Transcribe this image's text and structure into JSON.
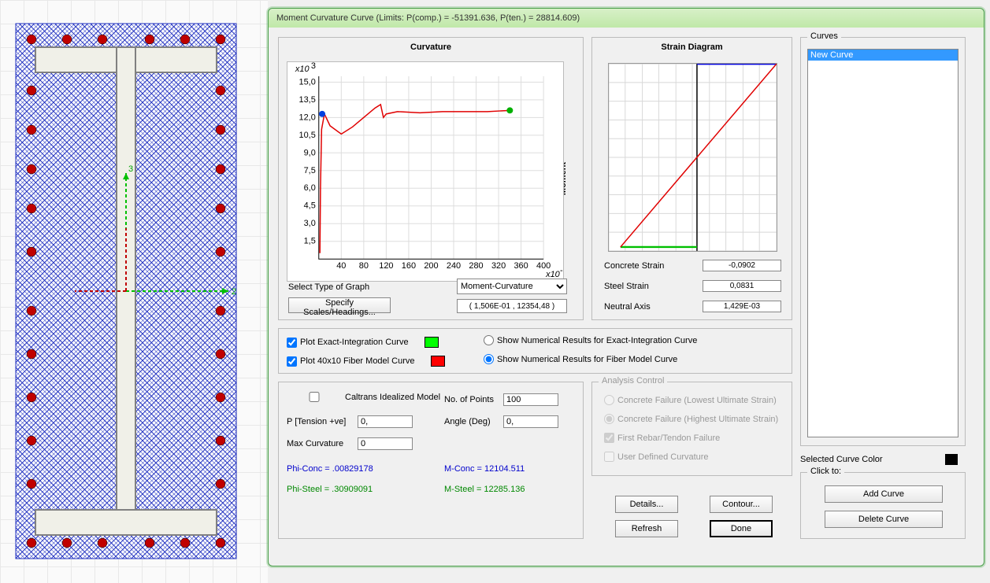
{
  "window": {
    "title": "Moment Curvature Curve (Limits:  P(comp.) = -51391.636, P(ten.) = 28814.609)"
  },
  "section": {
    "hatch_color": "#2030c0",
    "rebar_color": "#c00000",
    "section_outline": "#808080",
    "arrow_x_color": "#00c000",
    "arrow_y_color": "#c00000",
    "grid_bg": "#fafafa"
  },
  "curvature_chart": {
    "title": "Curvature",
    "y_axis_label": "Moment",
    "y_multiplier": "x10",
    "y_exp": "3",
    "x_multiplier": "x10",
    "x_exp": "-3",
    "ylim": [
      0,
      15.5
    ],
    "yticks": [
      1.5,
      3.0,
      4.5,
      6.0,
      7.5,
      9.0,
      10.5,
      12.0,
      13.5,
      15.0
    ],
    "xticks": [
      40,
      80,
      120,
      160,
      200,
      240,
      280,
      320,
      360,
      400
    ],
    "curve": {
      "color": "#e00000",
      "start_marker_color": "#0040e0",
      "end_marker_color": "#00b000",
      "points_x": [
        2,
        3,
        5,
        10,
        20,
        40,
        60,
        80,
        100,
        110,
        115,
        120,
        140,
        180,
        220,
        260,
        300,
        340
      ],
      "points_y": [
        0.5,
        6,
        11,
        12.3,
        11.3,
        10.6,
        11.2,
        12.0,
        12.8,
        13.1,
        12.0,
        12.3,
        12.5,
        12.4,
        12.5,
        12.5,
        12.5,
        12.6
      ]
    },
    "select_label": "Select Type of Graph",
    "select_value": "Moment-Curvature",
    "specify_btn": "Specify Scales/Headings...",
    "coords": "( 1,506E-01 , 12354,48 )",
    "bg": "#ffffff",
    "grid_color": "#dddddd"
  },
  "strain_diagram": {
    "title": "Strain Diagram",
    "top_line_color": "#0000e0",
    "bottom_line_color": "#00c000",
    "diag_line_color": "#e00000",
    "grid_color": "#d8d8d8",
    "concrete_strain_label": "Concrete Strain",
    "concrete_strain": "-0,0902",
    "steel_strain_label": "Steel Strain",
    "steel_strain": "0,0831",
    "neutral_axis_label": "Neutral Axis",
    "neutral_axis": "1,429E-03"
  },
  "curves_panel": {
    "legend": "Curves",
    "items": [
      "New Curve"
    ],
    "selected_index": 0
  },
  "options": {
    "plot_exact_label": "Plot Exact-Integration Curve",
    "plot_exact_checked": true,
    "plot_exact_color": "#00ff00",
    "plot_fiber_label": "Plot 40x10 Fiber Model Curve",
    "plot_fiber_checked": true,
    "plot_fiber_color": "#ff0000",
    "show_exact_label": "Show Numerical Results for Exact-Integration Curve",
    "show_exact_selected": false,
    "show_fiber_label": "Show Numerical Results for Fiber Model Curve",
    "show_fiber_selected": true
  },
  "params": {
    "caltrans_label": "Caltrans Idealized Model",
    "caltrans_checked": false,
    "p_label": "P [Tension +ve]",
    "p_value": "0,",
    "max_curv_label": "Max Curvature",
    "max_curv_value": "0",
    "phi_conc_label": "Phi-Conc = .00829178",
    "phi_steel_label": "Phi-Steel = .30909091",
    "nopoints_label": "No. of Points",
    "nopoints_value": "100",
    "angle_label": "Angle (Deg)",
    "angle_value": "0,",
    "m_conc_label": "M-Conc = 12104.511",
    "m_steel_label": "M-Steel = 12285.136"
  },
  "analysis": {
    "legend": "Analysis Control",
    "opt1": "Concrete Failure (Lowest Ultimate Strain)",
    "opt2": "Concrete Failure (Highest Ultimate Strain)",
    "opt3": "First Rebar/Tendon Failure",
    "opt4": "User Defined Curvature"
  },
  "buttons": {
    "details": "Details...",
    "contour": "Contour...",
    "refresh": "Refresh",
    "done": "Done",
    "add_curve": "Add Curve",
    "delete_curve": "Delete Curve"
  },
  "selected_color_label": "Selected Curve Color",
  "clickto_legend": "Click to:"
}
